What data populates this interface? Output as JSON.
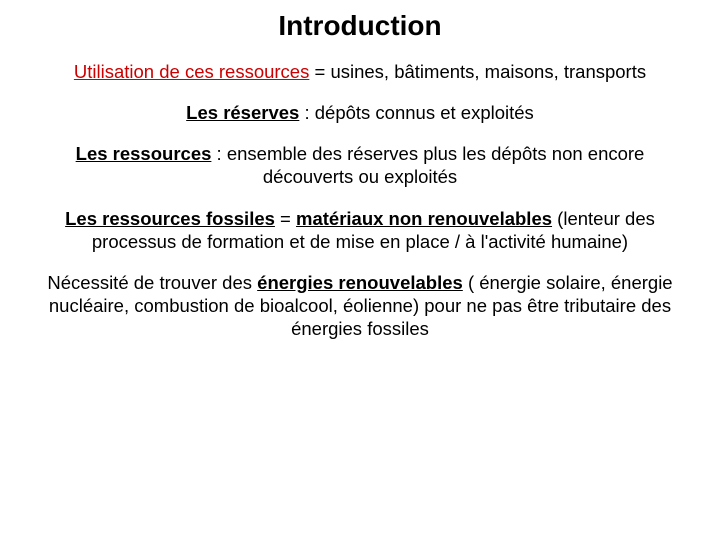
{
  "title": "Introduction",
  "p1": {
    "a": "Utilisation de ces ressources",
    "b": " = usines, bâtiments, maisons, transports"
  },
  "p2": {
    "a": "Les réserves",
    "b": " : dépôts connus et exploités"
  },
  "p3": {
    "a": "Les ressources",
    "b": " : ensemble des réserves plus les dépôts non encore découverts ou exploités"
  },
  "p4": {
    "a": "Les ressources fossiles",
    "b": " = ",
    "c": "matériaux non renouvelables",
    "d": " (lenteur des processus de formation et de mise en place / à l'activité humaine)"
  },
  "p5": {
    "a": "Nécessité de trouver des ",
    "b": "énergies renouvelables",
    "c": " ( énergie solaire, énergie nucléaire, combustion de bioalcool, éolienne) pour ne pas être tributaire des énergies fossiles"
  },
  "colors": {
    "text": "#000000",
    "accent": "#cc0000",
    "background": "#ffffff"
  },
  "typography": {
    "family": "Comic Sans MS",
    "title_pt": 28,
    "body_pt": 18.5
  }
}
